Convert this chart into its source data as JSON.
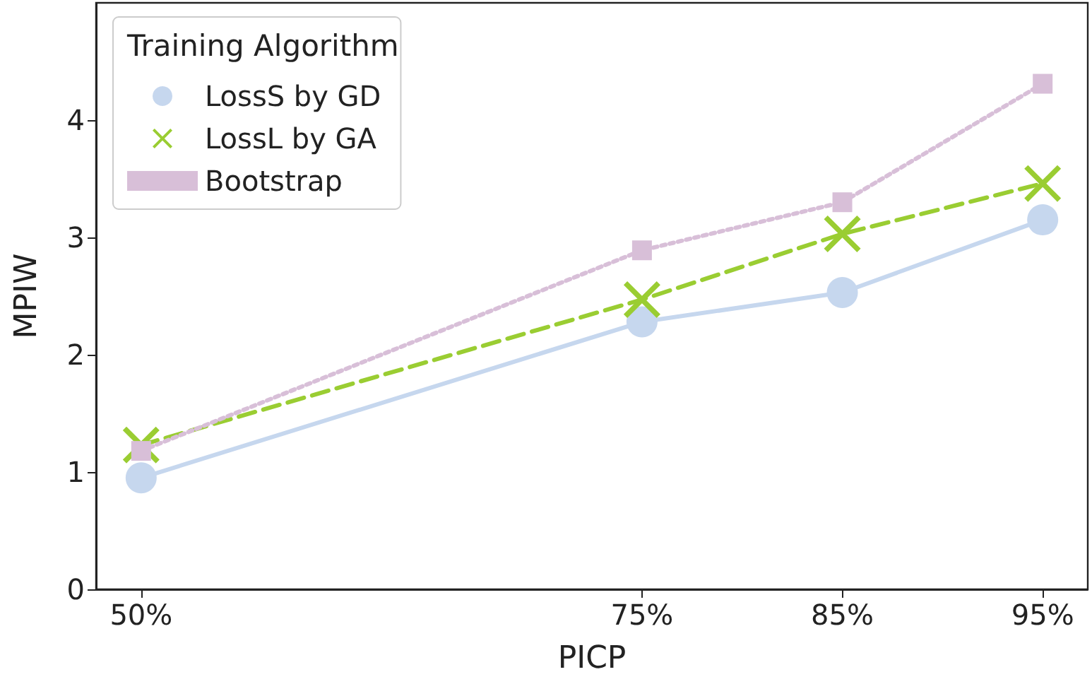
{
  "chart_data": {
    "type": "line",
    "xlabel": "PICP",
    "ylabel": "MPIW",
    "legend_title": "Training Algorithm",
    "legend": "top left",
    "grid": false,
    "x": [
      50,
      75,
      85,
      95
    ],
    "xlim": [
      47.75,
      97.25
    ],
    "xticks": [
      {
        "value": 50,
        "label": "50%"
      },
      {
        "value": 75,
        "label": "75%"
      },
      {
        "value": 85,
        "label": "85%"
      },
      {
        "value": 95,
        "label": "95%"
      }
    ],
    "ylim": [
      0,
      5
    ],
    "yticks": [
      0,
      1,
      2,
      3,
      4
    ],
    "series": [
      {
        "name": "LossS by GD",
        "color": "#c6d7ee",
        "marker": "circle",
        "line_style": "solid",
        "values": [
          0.95,
          2.28,
          2.53,
          3.15
        ]
      },
      {
        "name": "LossL by GA",
        "color": "#9acd32",
        "marker": "cross",
        "line_style": "dashed",
        "values": [
          1.23,
          2.47,
          3.03,
          3.46
        ]
      },
      {
        "name": "Bootstrap",
        "color": "#d8bfd8",
        "marker": "square",
        "line_style": "dotted",
        "values": [
          1.18,
          2.89,
          3.3,
          4.31
        ]
      }
    ]
  }
}
